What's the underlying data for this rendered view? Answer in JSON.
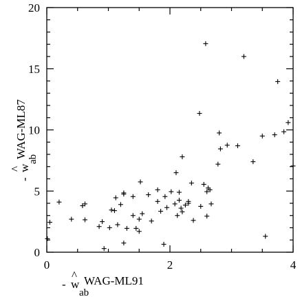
{
  "chart_data": {
    "type": "scatter",
    "title": "",
    "xlabel": {
      "prefix": "- ",
      "symbol": "w",
      "accent": "^",
      "superscript": "WAG-ML91",
      "subscript": "ab"
    },
    "ylabel": {
      "prefix": "- ",
      "symbol": "w",
      "accent": "^",
      "superscript": "WAG-ML87",
      "subscript": "ab"
    },
    "xlim": [
      0,
      4
    ],
    "ylim": [
      0,
      20
    ],
    "x_ticks": [
      "0",
      "2",
      "4"
    ],
    "x_tick_values": [
      0,
      2,
      4
    ],
    "y_ticks": [
      "0",
      "5",
      "10",
      "15",
      "20"
    ],
    "y_tick_values": [
      0,
      5,
      10,
      15,
      20
    ],
    "x_minor_step": 0.5,
    "y_minor_step": 1,
    "grid": false,
    "legend": "none",
    "marker": "+",
    "color": "#000000",
    "points": [
      [
        0.01,
        1.1
      ],
      [
        0.05,
        2.45
      ],
      [
        0.2,
        4.1
      ],
      [
        0.4,
        2.7
      ],
      [
        0.58,
        3.8
      ],
      [
        0.62,
        3.95
      ],
      [
        0.62,
        2.65
      ],
      [
        0.85,
        2.1
      ],
      [
        0.9,
        2.5
      ],
      [
        0.93,
        0.3
      ],
      [
        1.02,
        2.0
      ],
      [
        1.05,
        3.45
      ],
      [
        1.1,
        3.4
      ],
      [
        1.12,
        4.45
      ],
      [
        1.15,
        2.25
      ],
      [
        1.2,
        3.9
      ],
      [
        1.25,
        4.85
      ],
      [
        1.25,
        4.75
      ],
      [
        1.25,
        0.75
      ],
      [
        1.3,
        1.95
      ],
      [
        1.4,
        4.55
      ],
      [
        1.4,
        3.0
      ],
      [
        1.45,
        1.95
      ],
      [
        1.5,
        2.7
      ],
      [
        1.5,
        1.7
      ],
      [
        1.52,
        5.75
      ],
      [
        1.55,
        3.15
      ],
      [
        1.65,
        4.7
      ],
      [
        1.7,
        2.55
      ],
      [
        1.8,
        5.1
      ],
      [
        1.8,
        4.15
      ],
      [
        1.85,
        3.35
      ],
      [
        1.9,
        0.65
      ],
      [
        1.92,
        4.55
      ],
      [
        1.95,
        3.65
      ],
      [
        2.02,
        4.95
      ],
      [
        2.08,
        3.95
      ],
      [
        2.1,
        6.5
      ],
      [
        2.12,
        3.0
      ],
      [
        2.15,
        4.9
      ],
      [
        2.15,
        4.25
      ],
      [
        2.18,
        3.6
      ],
      [
        2.2,
        7.8
      ],
      [
        2.2,
        3.3
      ],
      [
        2.25,
        3.85
      ],
      [
        2.3,
        4.15
      ],
      [
        2.3,
        4.0
      ],
      [
        2.35,
        5.65
      ],
      [
        2.38,
        2.6
      ],
      [
        2.48,
        11.35
      ],
      [
        2.5,
        3.75
      ],
      [
        2.55,
        5.55
      ],
      [
        2.58,
        17.05
      ],
      [
        2.6,
        4.95
      ],
      [
        2.6,
        2.95
      ],
      [
        2.62,
        5.25
      ],
      [
        2.65,
        5.1
      ],
      [
        2.67,
        3.95
      ],
      [
        2.78,
        7.2
      ],
      [
        2.8,
        9.75
      ],
      [
        2.82,
        8.45
      ],
      [
        2.93,
        8.75
      ],
      [
        3.1,
        8.7
      ],
      [
        3.2,
        16.0
      ],
      [
        3.35,
        7.4
      ],
      [
        3.5,
        9.5
      ],
      [
        3.55,
        1.3
      ],
      [
        3.7,
        9.6
      ],
      [
        3.75,
        13.95
      ],
      [
        3.85,
        9.85
      ],
      [
        3.92,
        10.6
      ],
      [
        4.0,
        7.05
      ]
    ]
  }
}
